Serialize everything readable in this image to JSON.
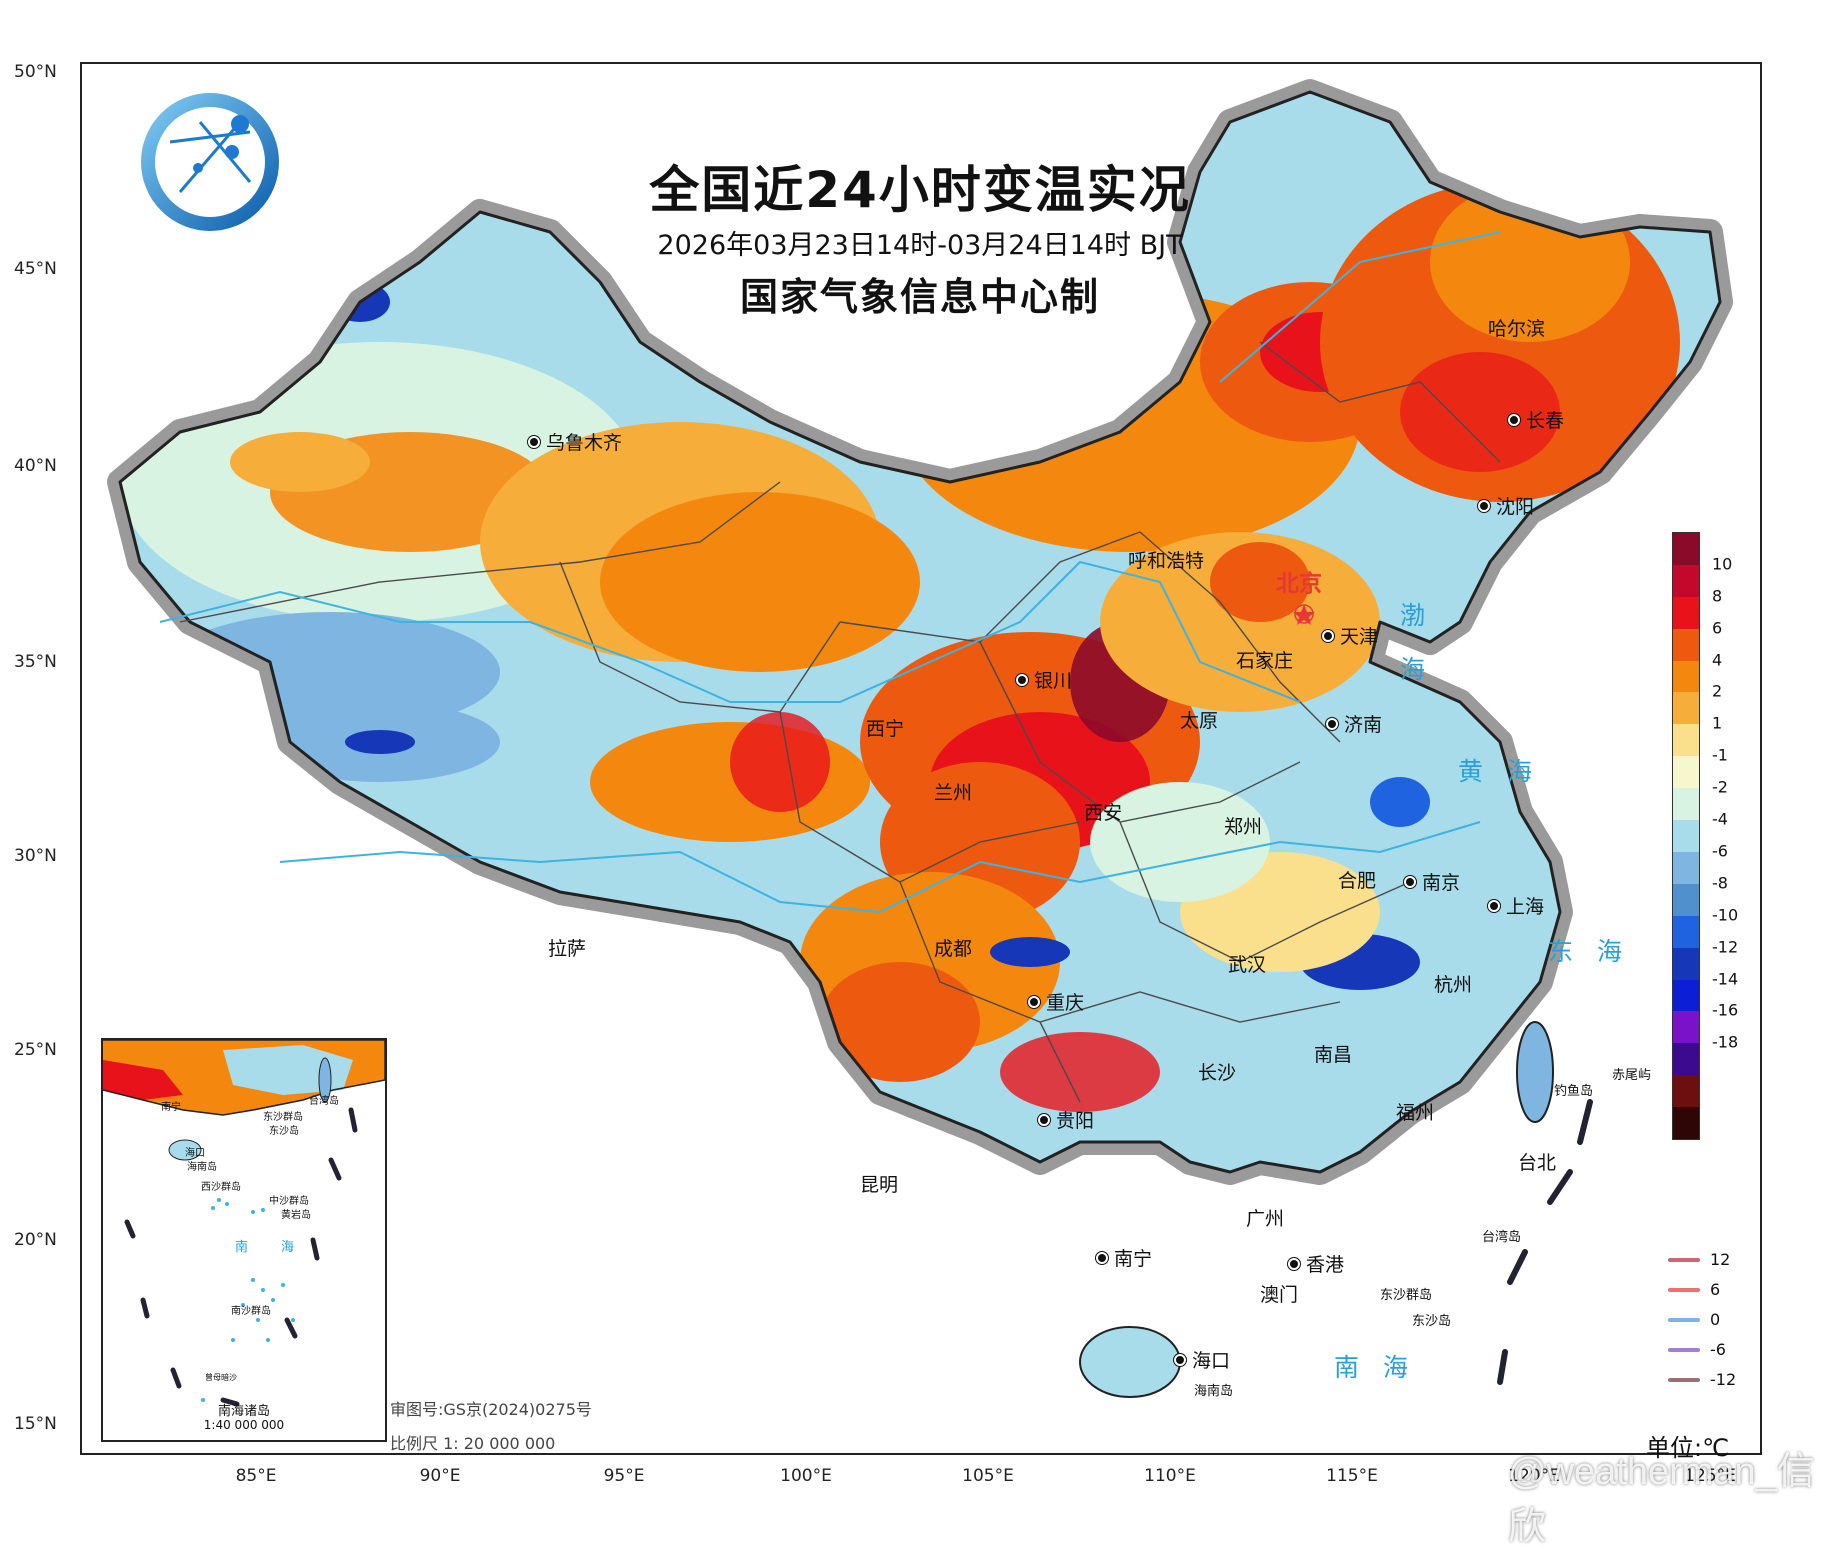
{
  "title": {
    "main": "全国近24小时变温实况",
    "period": "2026年03月23日14时-03月24日14时 BJT",
    "org": "国家气象信息中心制"
  },
  "axes": {
    "lat_labels": [
      "50°N",
      "45°N",
      "40°N",
      "35°N",
      "30°N",
      "25°N",
      "20°N",
      "15°N"
    ],
    "lon_labels": [
      "85°E",
      "90°E",
      "95°E",
      "100°E",
      "105°E",
      "110°E",
      "115°E",
      "120°E",
      "125°E"
    ]
  },
  "cities": [
    {
      "key": "urumqi",
      "name": "乌鲁木齐"
    },
    {
      "key": "harbin",
      "name": "哈尔滨"
    },
    {
      "key": "changchun",
      "name": "长春"
    },
    {
      "key": "shenyang",
      "name": "沈阳"
    },
    {
      "key": "hohhot",
      "name": "呼和浩特"
    },
    {
      "key": "tianjin",
      "name": "天津"
    },
    {
      "key": "shijiazhuang",
      "name": "石家庄"
    },
    {
      "key": "yinchuan",
      "name": "银川"
    },
    {
      "key": "taiyuan",
      "name": "太原"
    },
    {
      "key": "jinan",
      "name": "济南"
    },
    {
      "key": "xining",
      "name": "西宁"
    },
    {
      "key": "lanzhou",
      "name": "兰州"
    },
    {
      "key": "xian",
      "name": "西安"
    },
    {
      "key": "zhengzhou",
      "name": "郑州"
    },
    {
      "key": "hefei",
      "name": "合肥"
    },
    {
      "key": "nanjing",
      "name": "南京"
    },
    {
      "key": "shanghai",
      "name": "上海"
    },
    {
      "key": "lhasa",
      "name": "拉萨"
    },
    {
      "key": "chengdu",
      "name": "成都"
    },
    {
      "key": "wuhan",
      "name": "武汉"
    },
    {
      "key": "hangzhou",
      "name": "杭州"
    },
    {
      "key": "chongqing",
      "name": "重庆"
    },
    {
      "key": "changsha",
      "name": "长沙"
    },
    {
      "key": "nanchang",
      "name": "南昌"
    },
    {
      "key": "fuzhou",
      "name": "福州"
    },
    {
      "key": "guiyang",
      "name": "贵阳"
    },
    {
      "key": "taipei",
      "name": "台北"
    },
    {
      "key": "kunming",
      "name": "昆明"
    },
    {
      "key": "guangzhou",
      "name": "广州"
    },
    {
      "key": "nanning",
      "name": "南宁"
    },
    {
      "key": "hongkong",
      "name": "香港"
    },
    {
      "key": "macau",
      "name": "澳门"
    },
    {
      "key": "haikou",
      "name": "海口"
    }
  ],
  "capital": "北京",
  "seas": {
    "bohai_1": "渤",
    "bohai_2": "海",
    "huanghai": "黄 海",
    "donghai": "东 海",
    "nanhai": "南 海"
  },
  "islands": {
    "chiwei": "赤尾屿",
    "diaoyu": "钓鱼岛",
    "taiwan_island": "台湾岛",
    "dongsha": "东沙群岛",
    "dongsha_island": "东沙岛",
    "hainan_island": "海南岛"
  },
  "inset": {
    "title": "南海诸岛",
    "scale": "1:40 000 000",
    "labels": {
      "nanning": "南宁",
      "haikou": "海口",
      "hainan": "海南岛",
      "taiwan": "台湾岛",
      "dongsha": "东沙群岛",
      "dongsha_isl": "东沙岛",
      "xisha": "西沙群岛",
      "zhongsha": "中沙群岛",
      "huangyan": "黄岩岛",
      "nan": "南",
      "hai": "海",
      "nansha": "南沙群岛",
      "zengmu": "曾母暗沙"
    }
  },
  "legend": {
    "ticks": [
      "10",
      "8",
      "6",
      "4",
      "2",
      "1",
      "-1",
      "-2",
      "-4",
      "-6",
      "-8",
      "-10",
      "-12",
      "-14",
      "-16",
      "-18"
    ],
    "colors": [
      "#8b0a2a",
      "#c4082c",
      "#e8131a",
      "#ed5a0f",
      "#f4880f",
      "#f7ad3a",
      "#fae08c",
      "#f6f7cd",
      "#d9f3e2",
      "#a8dcea",
      "#7fb6e1",
      "#4f90cd",
      "#1f63e0",
      "#1537b8",
      "#0d1fd6",
      "#7a12c9",
      "#3b0a8f",
      "#6e0f0f",
      "#2e0606"
    ],
    "line_items": [
      {
        "value": "12",
        "color": "#cc6673"
      },
      {
        "value": "6",
        "color": "#ef7070"
      },
      {
        "value": "0",
        "color": "#7fb2ea"
      },
      {
        "value": "-6",
        "color": "#a57dd6"
      },
      {
        "value": "-12",
        "color": "#9a7078"
      }
    ],
    "unit": "单位:℃"
  },
  "notes": {
    "approval": "审图号:GS京(2024)0275号",
    "scale": "比例尺 1: 20 000 000"
  },
  "watermark": "@weatherman_信欣",
  "map_colors": {
    "sea_outline": "#8d8d8d",
    "border": "#222222",
    "province": "#4a4a4a",
    "river": "#3eb3df"
  }
}
